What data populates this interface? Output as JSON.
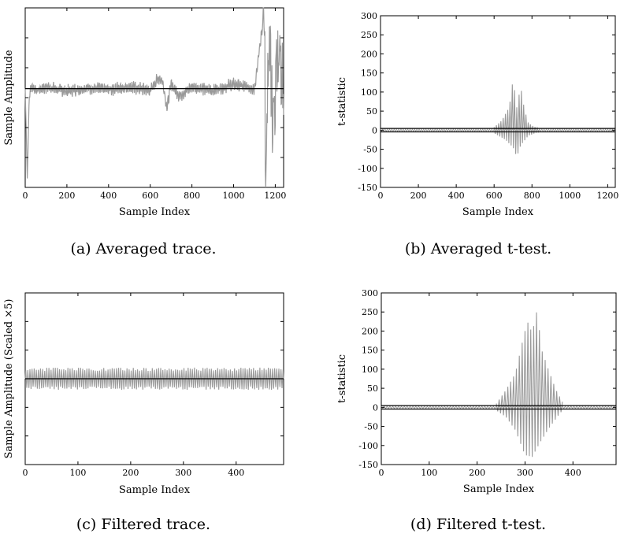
{
  "chart_data": [
    {
      "type": "line",
      "caption": "(a) Averaged trace.",
      "xlabel": "Sample Index",
      "ylabel": "Sample Amplitude",
      "xlim": [
        0,
        1240
      ],
      "xticks": [
        0,
        200,
        400,
        600,
        800,
        1000,
        1200
      ],
      "yticks": [],
      "ylim": [
        -1,
        1
      ],
      "grid": false,
      "reference_line": 0.1,
      "series": [
        {
          "color": "#999999",
          "values_by_index": [
            [
              0,
              0.1
            ],
            [
              10,
              -0.9
            ],
            [
              20,
              0.05
            ],
            [
              30,
              0.12
            ],
            [
              60,
              0.08
            ],
            [
              100,
              0.12
            ],
            [
              200,
              0.07
            ],
            [
              300,
              0.11
            ],
            [
              400,
              0.09
            ],
            [
              500,
              0.12
            ],
            [
              600,
              0.08
            ],
            [
              640,
              0.22
            ],
            [
              660,
              0.18
            ],
            [
              680,
              -0.12
            ],
            [
              700,
              0.15
            ],
            [
              740,
              0.02
            ],
            [
              800,
              0.12
            ],
            [
              900,
              0.08
            ],
            [
              1000,
              0.15
            ],
            [
              1100,
              0.1
            ],
            [
              1150,
              1.0
            ],
            [
              1152,
              -1.0
            ],
            [
              1170,
              0.7
            ],
            [
              1190,
              -0.4
            ],
            [
              1210,
              0.5
            ],
            [
              1235,
              0.15
            ]
          ]
        }
      ]
    },
    {
      "type": "line",
      "caption": "(b) Averaged t-test.",
      "xlabel": "Sample Index",
      "ylabel": "t-statistic",
      "xlim": [
        0,
        1240
      ],
      "ylim": [
        -150,
        300
      ],
      "xticks": [
        0,
        200,
        400,
        600,
        800,
        1000,
        1200
      ],
      "yticks": [
        -150,
        -100,
        -50,
        0,
        50,
        100,
        150,
        200,
        250,
        300
      ],
      "grid": false,
      "thresholds": [
        4.5,
        -4.5
      ],
      "peak_region": [
        600,
        840
      ],
      "peak_max": 135,
      "peak_min": -70,
      "series": [
        {
          "color": "#999999",
          "envelope": [
            [
              600,
              8
            ],
            [
              640,
              25
            ],
            [
              680,
              60
            ],
            [
              700,
              135
            ],
            [
              720,
              60
            ],
            [
              740,
              115
            ],
            [
              760,
              55
            ],
            [
              780,
              20
            ],
            [
              800,
              12
            ],
            [
              840,
              3
            ]
          ],
          "negative_envelope": [
            [
              600,
              -8
            ],
            [
              660,
              -25
            ],
            [
              700,
              -45
            ],
            [
              720,
              -70
            ],
            [
              740,
              -40
            ],
            [
              780,
              -15
            ],
            [
              840,
              -3
            ]
          ]
        }
      ]
    },
    {
      "type": "line",
      "caption": "(c) Filtered trace.",
      "xlabel": "Sample Index",
      "ylabel": "Sample Amplitude (Scaled ×5)",
      "xlim": [
        0,
        490
      ],
      "ylim": [
        -1,
        1
      ],
      "xticks": [
        0,
        100,
        200,
        300,
        400
      ],
      "yticks": [],
      "grid": false,
      "reference_line": 0.0,
      "series": [
        {
          "color": "#999999",
          "period": 8,
          "amplitude": 0.13
        }
      ]
    },
    {
      "type": "line",
      "caption": "(d) Filtered t-test.",
      "xlabel": "Sample Index",
      "ylabel": "t-statistic",
      "xlim": [
        0,
        490
      ],
      "ylim": [
        -150,
        300
      ],
      "xticks": [
        0,
        100,
        200,
        300,
        400
      ],
      "yticks": [
        -150,
        -100,
        -50,
        0,
        50,
        100,
        150,
        200,
        250,
        300
      ],
      "grid": false,
      "thresholds": [
        4.5,
        -4.5
      ],
      "peak_region": [
        240,
        380
      ],
      "peak_max": 255,
      "peak_min": -130,
      "series": [
        {
          "color": "#999999",
          "envelope": [
            [
              240,
              10
            ],
            [
              260,
              45
            ],
            [
              280,
              90
            ],
            [
              295,
              175
            ],
            [
              305,
              225
            ],
            [
              315,
              195
            ],
            [
              325,
              255
            ],
            [
              335,
              150
            ],
            [
              350,
              95
            ],
            [
              365,
              45
            ],
            [
              380,
              10
            ]
          ],
          "negative_envelope": [
            [
              240,
              -8
            ],
            [
              260,
              -25
            ],
            [
              280,
              -60
            ],
            [
              300,
              -125
            ],
            [
              315,
              -130
            ],
            [
              330,
              -95
            ],
            [
              350,
              -55
            ],
            [
              370,
              -20
            ],
            [
              380,
              -5
            ]
          ]
        }
      ]
    }
  ]
}
